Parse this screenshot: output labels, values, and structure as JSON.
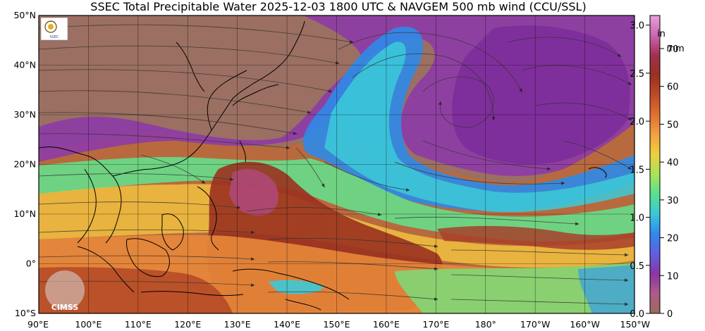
{
  "title": "SSEC Total Precipitable Water  2025-12-03 1800 UTC & NAVGEM 500 mb wind (CCU/SSL)",
  "map": {
    "lon_range": [
      90,
      210
    ],
    "lat_range": [
      -10,
      50
    ],
    "lat_ticks": [
      {
        "lat": 50,
        "label": "50°N"
      },
      {
        "lat": 40,
        "label": "40°N"
      },
      {
        "lat": 30,
        "label": "30°N"
      },
      {
        "lat": 20,
        "label": "20°N"
      },
      {
        "lat": 10,
        "label": "10°N"
      },
      {
        "lat": 0,
        "label": "0°"
      },
      {
        "lat": -10,
        "label": "10°S"
      }
    ],
    "lon_ticks": [
      {
        "lon": 90,
        "label": "90°E"
      },
      {
        "lon": 100,
        "label": "100°E"
      },
      {
        "lon": 110,
        "label": "110°E"
      },
      {
        "lon": 120,
        "label": "120°E"
      },
      {
        "lon": 130,
        "label": "130°E"
      },
      {
        "lon": 140,
        "label": "140°E"
      },
      {
        "lon": 150,
        "label": "150°E"
      },
      {
        "lon": 160,
        "label": "160°E"
      },
      {
        "lon": 170,
        "label": "170°E"
      },
      {
        "lon": 180,
        "label": "180°"
      },
      {
        "lon": 190,
        "label": "170°W"
      },
      {
        "lon": 200,
        "label": "160°W"
      },
      {
        "lon": 210,
        "label": "150°W"
      }
    ]
  },
  "colorbar": {
    "inch_unit": "in",
    "mm_unit": "mm",
    "inch_ticks": [
      "0.0",
      "0.5",
      "1.0",
      "1.5",
      "2.0",
      "2.5",
      "3.0"
    ],
    "mm_ticks": [
      "0",
      "10",
      "20",
      "30",
      "40",
      "50",
      "60",
      "70"
    ],
    "colors": [
      "#9a6a5c",
      "#b05a8a",
      "#8a34a8",
      "#6060e0",
      "#2f88ee",
      "#3cc8d8",
      "#58e090",
      "#a8e458",
      "#ecd040",
      "#f4a040",
      "#e07030",
      "#c04a28",
      "#9a3020",
      "#a03050",
      "#cc66b0",
      "#e8a0d8"
    ]
  },
  "logos": {
    "top_logo_text": "SSEC",
    "bottom_logo_text": "CIMSS"
  }
}
